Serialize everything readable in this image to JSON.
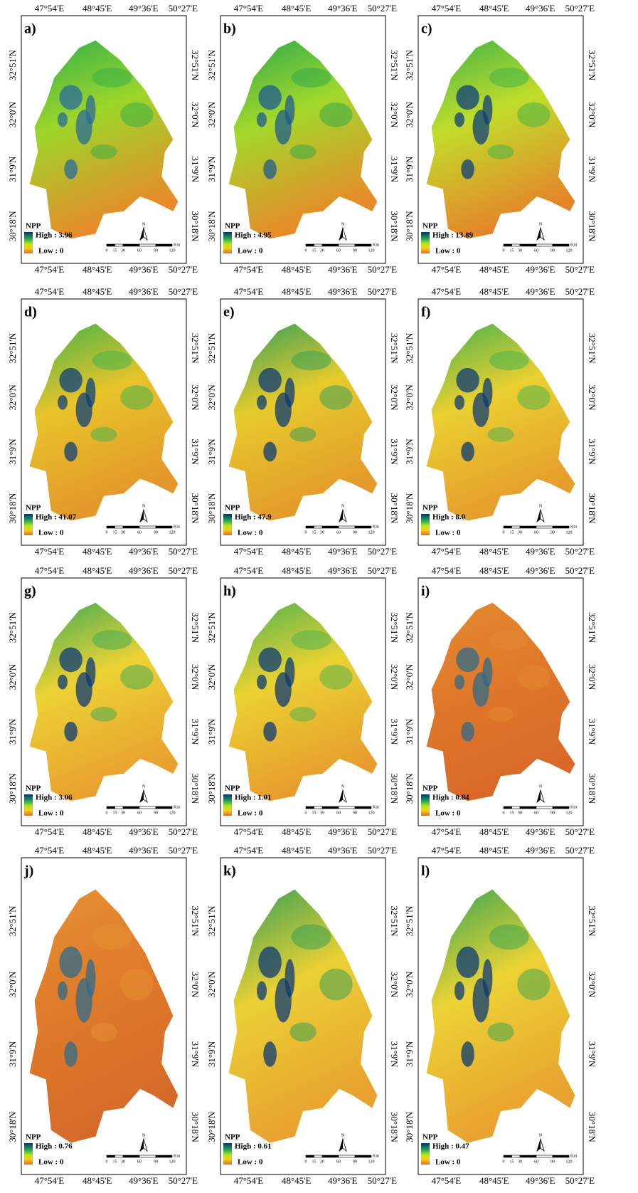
{
  "panels": [
    {
      "label": "a)",
      "high": "High : 3.96",
      "low": "Low : 0"
    },
    {
      "label": "b)",
      "high": "High : 4.95",
      "low": "Low : 0"
    },
    {
      "label": "c)",
      "high": "High : 13.89",
      "low": "Low : 0"
    },
    {
      "label": "d)",
      "high": "High : 41.07",
      "low": "Low : 0"
    },
    {
      "label": "e)",
      "high": "High : 47.9",
      "low": "Low : 0"
    },
    {
      "label": "f)",
      "high": "High : 8.0",
      "low": "Low : 0"
    },
    {
      "label": "g)",
      "high": "High : 3.06",
      "low": "Low : 0"
    },
    {
      "label": "h)",
      "high": "High : 1.01",
      "low": "Low : 0"
    },
    {
      "label": "i)",
      "high": "High : 0.84",
      "low": "Low : 0"
    },
    {
      "label": "j)",
      "high": "High : 0.76",
      "low": "Low : 0"
    },
    {
      "label": "k)",
      "high": "High : 0.61",
      "low": "Low : 0"
    },
    {
      "label": "l)",
      "high": "High : 0.47",
      "low": "Low : 0"
    }
  ],
  "longitudes": [
    "47°54'E",
    "48°45'E",
    "49°36'E",
    "50°27'E"
  ],
  "latitudes": [
    "32°51'N",
    "32°0'N",
    "31°9'N",
    "30°18'N"
  ],
  "legend_title": "NPP",
  "scale_labels": [
    "0",
    "15",
    "30",
    "60",
    "90",
    "120"
  ],
  "scale_unit": "Km",
  "north": "N"
}
